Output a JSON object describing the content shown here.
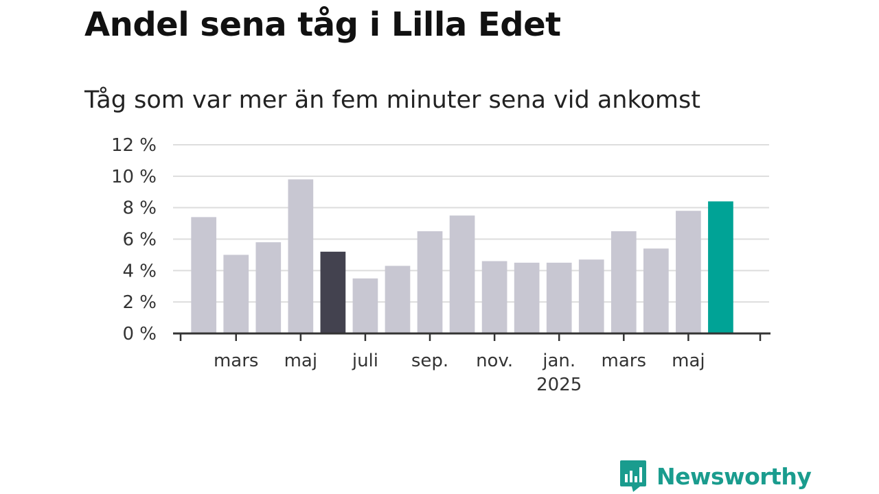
{
  "title": "Andel sena tåg i Lilla Edet",
  "subtitle": "Tåg som var mer än fem minuter sena vid ankomst",
  "brand": {
    "name": "Newsworthy",
    "icon": "bar-chart-bubble-icon",
    "color": "#1a9c8e"
  },
  "colors": {
    "bar": "#c8c7d2",
    "highlight_dark": "#43424f",
    "highlight_accent": "#00a396",
    "grid": "#dddddd",
    "axis": "#333333"
  },
  "chart_data": {
    "type": "bar",
    "title": "Andel sena tåg i Lilla Edet",
    "subtitle": "Tåg som var mer än fem minuter sena vid ankomst",
    "xlabel": "",
    "ylabel": "",
    "ylim": [
      0,
      12
    ],
    "y_ticks": [
      "0 %",
      "2 %",
      "4 %",
      "6 %",
      "8 %",
      "10 %",
      "12 %"
    ],
    "x_tick_labels": [
      "mars",
      "maj",
      "juli",
      "sep.",
      "nov.",
      "jan.",
      "mars",
      "maj"
    ],
    "x_tick_sublabels": {
      "jan.": "2025"
    },
    "x_tick_months": [
      3,
      5,
      7,
      9,
      11,
      13,
      15,
      17
    ],
    "months": [
      2,
      3,
      4,
      5,
      6,
      7,
      8,
      9,
      10,
      11,
      12,
      13,
      14,
      15,
      16,
      17,
      18
    ],
    "values": [
      7.4,
      5.0,
      5.8,
      9.8,
      5.2,
      3.5,
      4.3,
      6.5,
      7.5,
      4.6,
      4.5,
      4.5,
      4.7,
      6.5,
      5.4,
      7.8,
      8.4
    ],
    "highlights": {
      "4": "dark",
      "16": "accent"
    },
    "grid": true,
    "legend": "none"
  }
}
